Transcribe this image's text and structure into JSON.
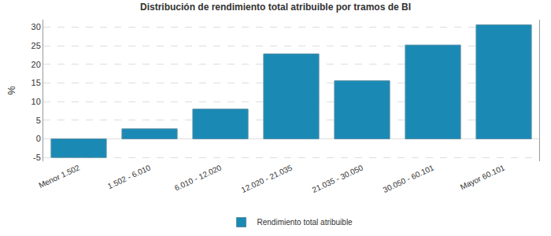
{
  "chart_data": {
    "type": "bar",
    "title": "Distribución de rendimiento total atribuible por tramos de BI",
    "y_label": "%",
    "categories": [
      "Menor 1.502",
      "1.502 - 6.010",
      "6.010 - 12.020",
      "12.020 - 21.035",
      "21.035 - 30.050",
      "30.050 - 60.101",
      "Mayor 60.101"
    ],
    "series": [
      {
        "name": "Rendimiento total atribuible",
        "color": "#1a8ab5",
        "values": [
          -5,
          2.7,
          8,
          22.8,
          15.6,
          25.2,
          30.6
        ]
      }
    ],
    "ylim": [
      -6,
      32
    ],
    "yticks": [
      -5,
      0,
      5,
      10,
      15,
      20,
      25,
      30
    ],
    "grid": true,
    "legend": "bottom"
  }
}
